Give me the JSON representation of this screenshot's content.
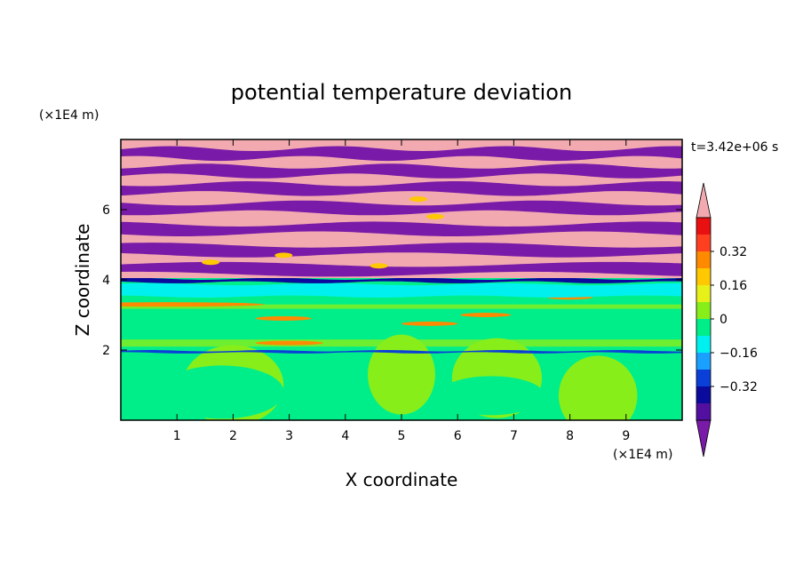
{
  "chart_data": {
    "type": "heatmap",
    "title": "potential temperature deviation",
    "xlabel": "X coordinate",
    "ylabel": "Z coordinate",
    "x_unit": "(×1E4 m)",
    "y_unit": "(×1E4 m)",
    "time_label": "t=3.42e+06 s",
    "xlim": [
      0,
      10
    ],
    "ylim": [
      0,
      8
    ],
    "x_ticks": [
      "1",
      "2",
      "3",
      "4",
      "5",
      "6",
      "7",
      "8",
      "9"
    ],
    "y_ticks": [
      "2",
      "4",
      "6"
    ],
    "colorbar": {
      "levels": [
        -0.48,
        -0.4,
        -0.32,
        -0.24,
        -0.16,
        -0.08,
        0,
        0.08,
        0.16,
        0.24,
        0.32,
        0.4,
        0.48
      ],
      "tick_labels": [
        "0.32",
        "0.16",
        "0",
        "−0.16",
        "−0.32"
      ],
      "tick_values": [
        0.32,
        0.16,
        0,
        -0.16,
        -0.32
      ],
      "colors": [
        "#7a1aa8",
        "#520fa0",
        "#0a0a9c",
        "#0a40d8",
        "#1aa0ff",
        "#00f0f0",
        "#00ee8a",
        "#88ee1a",
        "#e8f01a",
        "#ffc800",
        "#ff8a00",
        "#ff4020",
        "#e81010",
        "#f2aab0"
      ],
      "extend": "both"
    },
    "regions_description": [
      {
        "z_range": [
          4.0,
          8.0
        ],
        "pattern": "alternating layers of about +0.4 and -0.4",
        "colors": [
          "#f2aab0",
          "#7a1aa8"
        ]
      },
      {
        "z_range": [
          3.9,
          4.0
        ],
        "pattern": "thin layer of about -0.3",
        "colors": [
          "#0a0a9c"
        ]
      },
      {
        "z_range": [
          3.5,
          3.9
        ],
        "pattern": "layer of about -0.1",
        "colors": [
          "#00f0f0"
        ]
      },
      {
        "z_range": [
          0,
          3.5
        ],
        "pattern": "mixed near-zero values",
        "colors": [
          "#00ee8a",
          "#88ee1a"
        ]
      },
      {
        "z_range": [
          1.9,
          2.0
        ],
        "pattern": "thin negative line",
        "colors": [
          "#0a40d8"
        ]
      }
    ]
  }
}
